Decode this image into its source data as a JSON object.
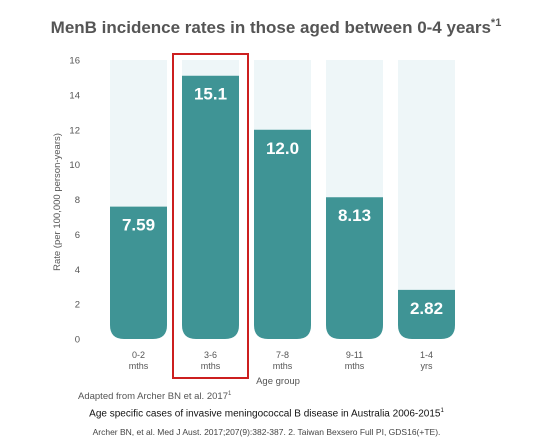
{
  "chart_data": {
    "type": "bar",
    "title": "MenB incidence rates in those aged between 0-4 years",
    "title_sup": "*1",
    "ylabel": "Rate (per 100,000 person-years)",
    "xlabel": "Age group",
    "ylim": [
      0,
      16
    ],
    "yticks": [
      "0",
      "2",
      "4",
      "6",
      "8",
      "10",
      "12",
      "14",
      "16"
    ],
    "categories": [
      {
        "line1": "0-2",
        "line2": "mths"
      },
      {
        "line1": "3-6",
        "line2": "mths"
      },
      {
        "line1": "7-8",
        "line2": "mths"
      },
      {
        "line1": "9-11",
        "line2": "mths"
      },
      {
        "line1": "1-4",
        "line2": "yrs"
      }
    ],
    "values": [
      7.59,
      15.1,
      12.0,
      8.13,
      2.82
    ],
    "value_labels": [
      "7.59",
      "15.1",
      "12.0",
      "8.13",
      "2.82"
    ],
    "highlighted_category_index": 1,
    "colors": {
      "bar": "#3f9495",
      "bar_background": "#eef6f8",
      "highlight_box": "#cc1f1f",
      "text": "#555555"
    }
  },
  "footer": {
    "adapted": "Adapted from Archer BN et al. 2017",
    "adapted_sup": "1",
    "caption": "Age specific cases of invasive meningococcal B disease in Australia 2006-2015",
    "caption_sup": "1",
    "refs": "Archer BN, et al. Med J Aust. 2017;207(9):382-387. 2. Taiwan Bexsero Full PI, GDS16(+TE)."
  }
}
